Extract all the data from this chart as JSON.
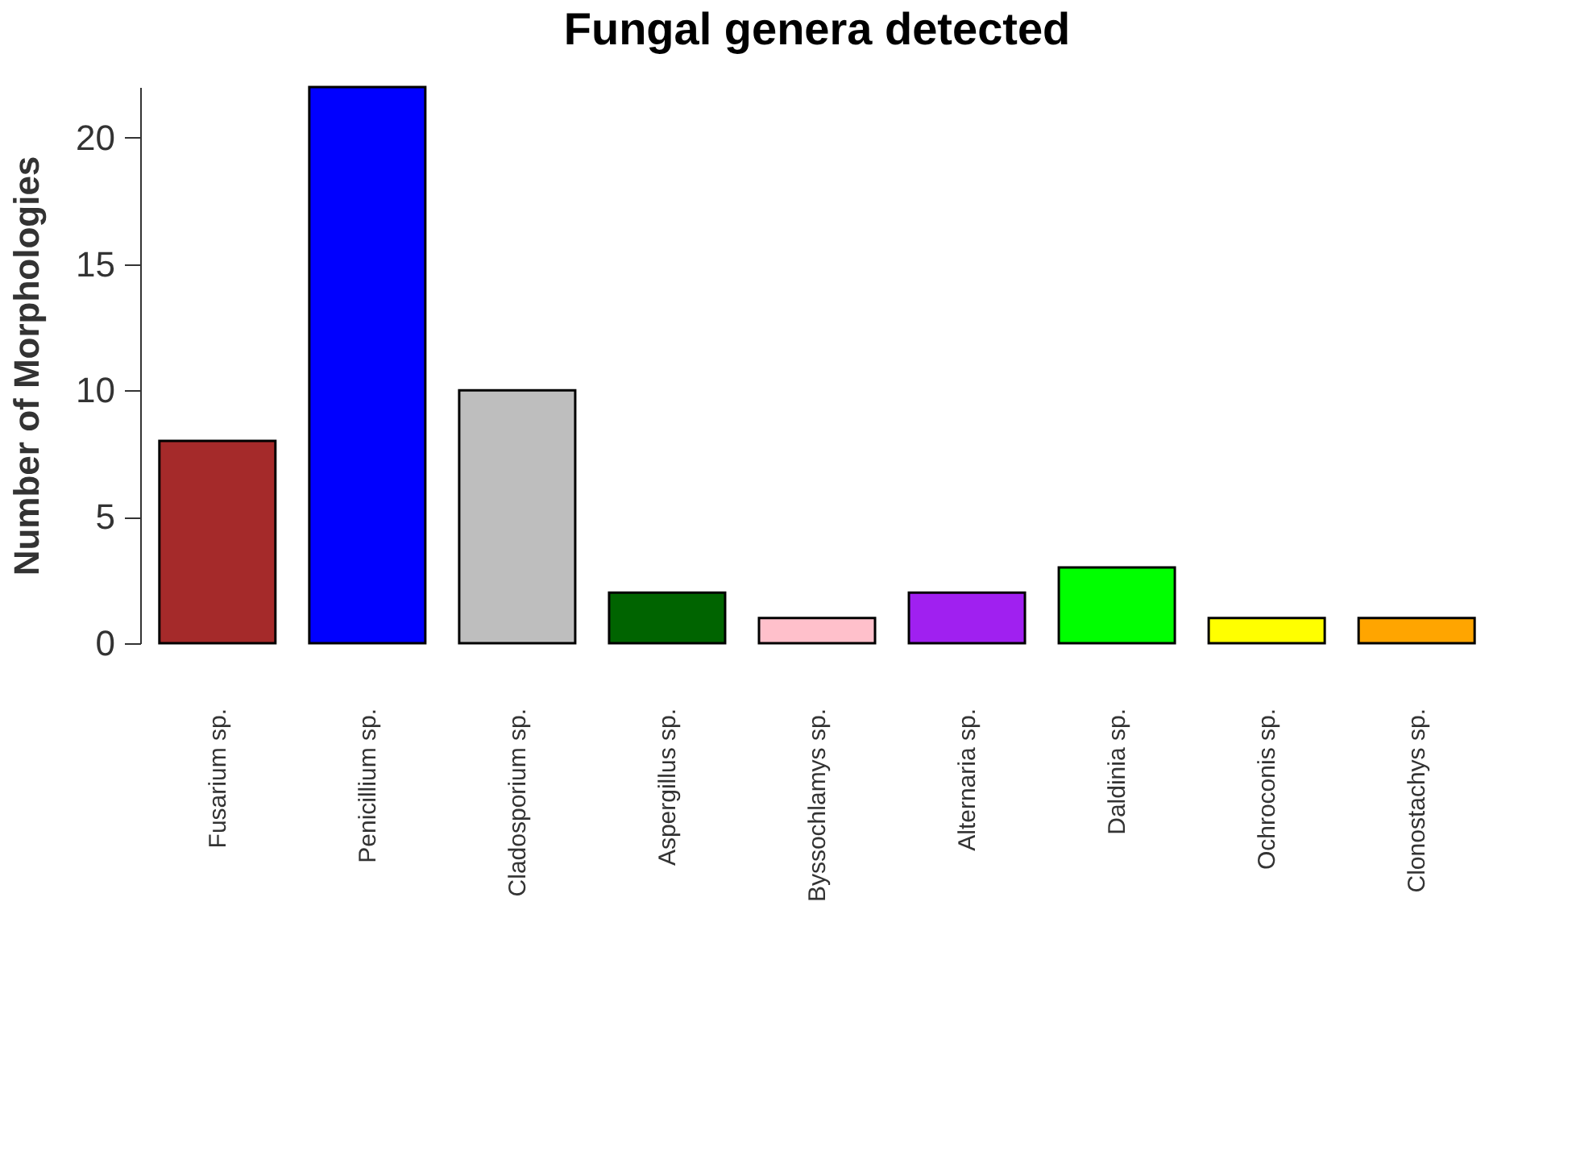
{
  "chart_data": {
    "type": "bar",
    "title": "Fungal genera detected",
    "ylabel": "Number of Morphologies",
    "categories": [
      "Fusarium sp.",
      "Penicillium sp.",
      "Cladosporium sp.",
      "Aspergillus sp.",
      "Byssochlamys sp.",
      "Alternaria sp.",
      "Daldinia sp.",
      "Ochroconis sp.",
      "Clonostachys sp."
    ],
    "values": [
      8,
      22,
      10,
      2,
      1,
      2,
      3,
      1,
      1
    ],
    "colors": [
      "#a52a2a",
      "#0000ff",
      "#bebebe",
      "#006400",
      "#ffc0cb",
      "#a020f0",
      "#00ff00",
      "#ffff00",
      "#ffa500"
    ],
    "ylim": [
      0,
      22
    ],
    "yticks": [
      0,
      5,
      10,
      15,
      20
    ]
  }
}
